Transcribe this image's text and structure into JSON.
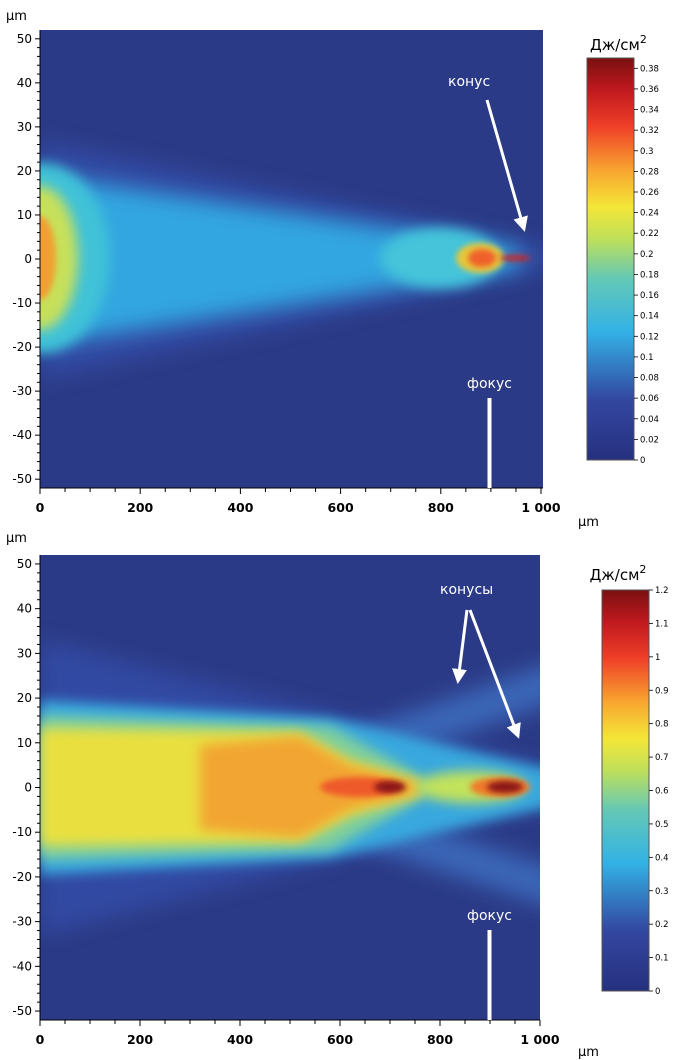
{
  "chart_data": [
    {
      "type": "heatmap",
      "x_unit": "μm",
      "y_unit": "μm",
      "xlim": [
        0,
        1000
      ],
      "ylim": [
        -52,
        52
      ],
      "x_ticks": [
        "0",
        "200",
        "400",
        "600",
        "800",
        "1 000"
      ],
      "x_tick_values": [
        0,
        200,
        400,
        600,
        800,
        1000
      ],
      "y_ticks": [
        "50",
        "40",
        "30",
        "20",
        "10",
        "0",
        "-10",
        "-20",
        "-30",
        "-40",
        "-50"
      ],
      "y_tick_values": [
        50,
        40,
        30,
        20,
        10,
        0,
        -10,
        -20,
        -30,
        -40,
        -50
      ],
      "colorbar": {
        "title": "Дж/см",
        "title_superscript": "2",
        "range": [
          0,
          0.39
        ],
        "ticks": [
          "0.38",
          "0.36",
          "0.34",
          "0.32",
          "0.3",
          "0.28",
          "0.26",
          "0.24",
          "0.22",
          "0.2",
          "0.18",
          "0.16",
          "0.14",
          "0.12",
          "0.1",
          "0.08",
          "0.06",
          "0.04",
          "0.02",
          "0"
        ],
        "tick_values": [
          0.38,
          0.36,
          0.34,
          0.32,
          0.3,
          0.28,
          0.26,
          0.24,
          0.22,
          0.2,
          0.18,
          0.16,
          0.14,
          0.12,
          0.1,
          0.08,
          0.06,
          0.04,
          0.02,
          0
        ]
      },
      "annotations": [
        {
          "text": "конус",
          "arrow_targets": [
            [
              970,
              6
            ]
          ]
        },
        {
          "text": "фокус",
          "marker_x": 900
        }
      ],
      "field_features": {
        "entrance_peak": {
          "x": 0,
          "value": 0.28,
          "half_width": 20
        },
        "focal_peak": {
          "x": 870,
          "value": 0.29
        },
        "hot_spot": {
          "x": 950,
          "value": 0.38
        }
      }
    },
    {
      "type": "heatmap",
      "x_unit": "μm",
      "y_unit": "μm",
      "xlim": [
        0,
        1000
      ],
      "ylim": [
        -52,
        52
      ],
      "x_ticks": [
        "0",
        "200",
        "400",
        "600",
        "800",
        "1 000"
      ],
      "x_tick_values": [
        0,
        200,
        400,
        600,
        800,
        1000
      ],
      "y_ticks": [
        "50",
        "40",
        "30",
        "20",
        "10",
        "0",
        "-10",
        "-20",
        "-30",
        "-40",
        "-50"
      ],
      "y_tick_values": [
        50,
        40,
        30,
        20,
        10,
        0,
        -10,
        -20,
        -30,
        -40,
        -50
      ],
      "colorbar": {
        "title": "Дж/см",
        "title_superscript": "2",
        "range": [
          0,
          1.2
        ],
        "ticks": [
          "1.2",
          "1.1",
          "1",
          "0.9",
          "0.8",
          "0.7",
          "0.6",
          "0.5",
          "0.4",
          "0.3",
          "0.2",
          "0.1",
          "0"
        ],
        "tick_values": [
          1.2,
          1.1,
          1.0,
          0.9,
          0.8,
          0.7,
          0.6,
          0.5,
          0.4,
          0.3,
          0.2,
          0.1,
          0
        ]
      },
      "annotations": [
        {
          "text": "конусы",
          "arrow_targets": [
            [
              835,
              20
            ],
            [
              960,
              10
            ]
          ]
        },
        {
          "text": "фокус",
          "marker_x": 900
        }
      ],
      "field_features": {
        "main_lobe": {
          "x_range": [
            0,
            600
          ],
          "half_width": 18,
          "peak_value": 0.85
        },
        "first_hot_spot": {
          "x": 700,
          "value": 1.15
        },
        "second_hot_spot": {
          "x": 930,
          "value": 1.15
        }
      }
    }
  ]
}
